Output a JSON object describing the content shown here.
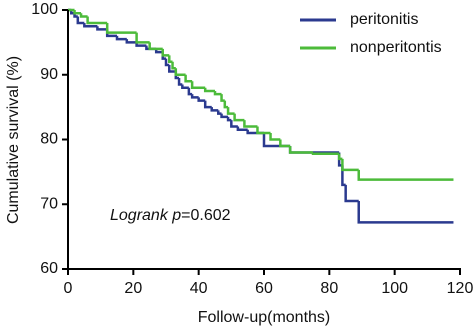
{
  "chart_data": {
    "type": "step",
    "x_label": "Follow-up(months)",
    "y_label": "Cumulative survival (%)",
    "annotation": {
      "italic": "Logrank p",
      "text": "=0.602"
    },
    "xlim": [
      0,
      120
    ],
    "xticks": [
      0,
      20,
      40,
      60,
      80,
      100,
      120
    ],
    "ylim": [
      60,
      100
    ],
    "yticks": [
      60,
      70,
      80,
      90,
      100
    ],
    "legend": "top-right",
    "series": [
      {
        "name": "peritonitis",
        "color": "#2b3a8f",
        "x": [
          0,
          1,
          2,
          3,
          5,
          9,
          12,
          15,
          18,
          21,
          24,
          27,
          29,
          30,
          31,
          33,
          34,
          35,
          37,
          38,
          40,
          42,
          44,
          46,
          47,
          49,
          50,
          52,
          55,
          60,
          68,
          83,
          84,
          85,
          89,
          118
        ],
        "values": [
          100,
          99.5,
          99,
          98,
          97.5,
          97,
          96,
          95.5,
          95,
          94.5,
          94,
          93.5,
          92.5,
          91.5,
          90.5,
          89.5,
          88.5,
          88,
          87,
          86.5,
          86,
          85,
          84.5,
          84,
          83.5,
          83,
          82,
          81.5,
          81,
          79,
          78,
          76,
          73,
          70.5,
          67.2,
          67.2
        ]
      },
      {
        "name": "nonperitontis",
        "color": "#4cbb3a",
        "x": [
          0,
          2,
          4,
          6,
          12,
          21,
          25,
          29,
          31,
          32,
          33,
          36,
          38,
          42,
          45,
          47,
          48,
          49,
          51,
          54,
          58,
          62,
          65,
          68,
          75,
          83,
          84,
          89,
          118
        ],
        "values": [
          100,
          99.5,
          99,
          98,
          96.5,
          95,
          94,
          93,
          92,
          91,
          90,
          89,
          88,
          87.5,
          87,
          86,
          85,
          84,
          83,
          82,
          81,
          80,
          79,
          78,
          77.8,
          77,
          75.3,
          73.8,
          73.8
        ]
      }
    ]
  }
}
